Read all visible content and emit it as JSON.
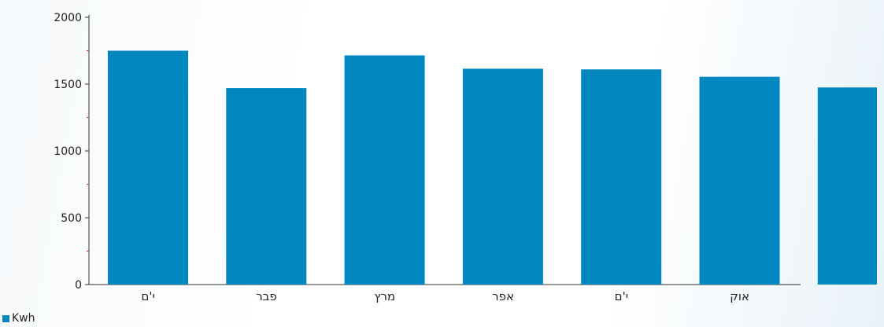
{
  "chart_data": {
    "type": "bar",
    "categories": [
      "י'ם",
      "פבר",
      "מרץ",
      "אפר",
      "י'ם",
      "אוק",
      ""
    ],
    "series": [
      {
        "name": "Kwh",
        "values": [
          1750,
          1470,
          1715,
          1615,
          1610,
          1555,
          1475
        ]
      }
    ],
    "ylim": [
      0,
      2000
    ],
    "yticks": [
      0,
      500,
      1000,
      1500,
      2000
    ],
    "ytick_labels": [
      "0",
      "500",
      "1000",
      "1500",
      "2000"
    ],
    "colors": {
      "bar": "#0087c0",
      "minor_tick": "#e03030",
      "axis": "#333333"
    },
    "grid": false,
    "legend_position": "bottom-left"
  }
}
